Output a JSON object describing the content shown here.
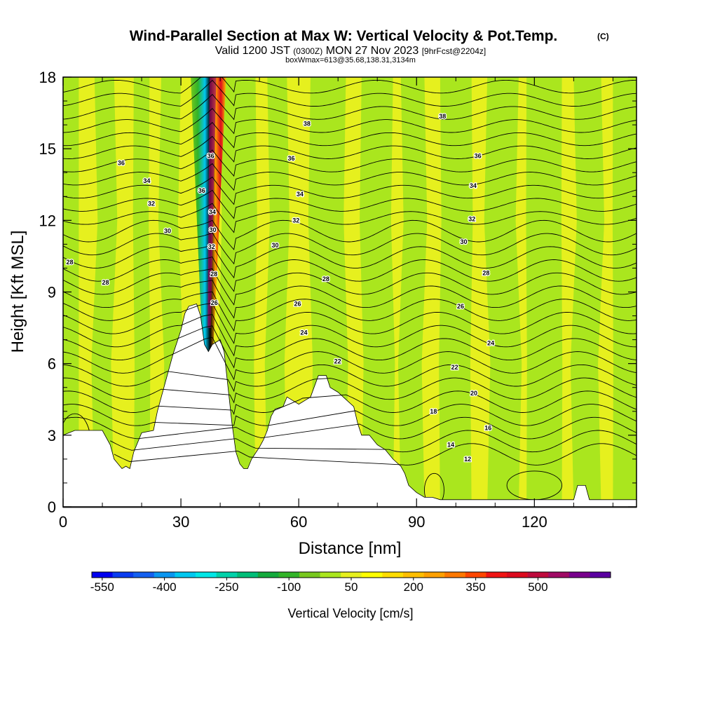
{
  "chart_data": {
    "type": "heatmap",
    "title": "Wind-Parallel Section at Max W: Vertical Velocity & Pot.Temp.",
    "title_mark": "(C)",
    "subtitle": {
      "prefix": "Valid 1200 JST",
      "utc": "(0300Z)",
      "date": "MON 27 Nov 2023",
      "forecast": "[9hrFcst@2204z]"
    },
    "box_wmax": "boxWmax=613@35.68,138.31,3134m",
    "xlabel": "Distance [nm]",
    "ylabel": "Height [Kft MSL]",
    "xlim": [
      0,
      146
    ],
    "ylim": [
      0,
      18
    ],
    "x_ticks": [
      "0",
      "30",
      "60",
      "90",
      "120"
    ],
    "y_ticks": [
      "0",
      "3",
      "6",
      "9",
      "12",
      "15",
      "18"
    ],
    "colorbar": {
      "label": "Vertical Velocity [cm/s]",
      "tick_labels": [
        "-550",
        "-400",
        "-250",
        "-100",
        "50",
        "200",
        "350",
        "500"
      ],
      "colors": [
        "#0000f0",
        "#0a3cf0",
        "#1460f0",
        "#0a96f0",
        "#00c8f0",
        "#00e6e6",
        "#00d2aa",
        "#00be78",
        "#14aa3c",
        "#32b428",
        "#78c81e",
        "#aae61e",
        "#e6f01e",
        "#ffff00",
        "#ffdc00",
        "#ffbe00",
        "#ffa000",
        "#ff7800",
        "#ff4600",
        "#f01414",
        "#dc0a1e",
        "#be0a3c",
        "#a00a64",
        "#78008c",
        "#5a00a0"
      ]
    },
    "theta_labels": [
      {
        "v": "38",
        "x": 62.1,
        "y": 16.05
      },
      {
        "v": "38",
        "x": 96.6,
        "y": 16.35
      },
      {
        "v": "36",
        "x": 14.8,
        "y": 14.4
      },
      {
        "v": "36",
        "x": 58.1,
        "y": 14.6
      },
      {
        "v": "36",
        "x": 105.6,
        "y": 14.7
      },
      {
        "v": "36",
        "x": 37.6,
        "y": 14.7
      },
      {
        "v": "36",
        "x": 35.3,
        "y": 13.25
      },
      {
        "v": "34",
        "x": 21.3,
        "y": 13.65
      },
      {
        "v": "34",
        "x": 60.3,
        "y": 13.1
      },
      {
        "v": "34",
        "x": 104.4,
        "y": 13.45
      },
      {
        "v": "34",
        "x": 38.0,
        "y": 12.35
      },
      {
        "v": "32",
        "x": 22.5,
        "y": 12.7
      },
      {
        "v": "32",
        "x": 59.3,
        "y": 12.0
      },
      {
        "v": "32",
        "x": 104.1,
        "y": 12.05
      },
      {
        "v": "32",
        "x": 37.8,
        "y": 10.9
      },
      {
        "v": "30",
        "x": 26.6,
        "y": 11.55
      },
      {
        "v": "30",
        "x": 54.0,
        "y": 10.95
      },
      {
        "v": "30",
        "x": 102.0,
        "y": 11.1
      },
      {
        "v": "30",
        "x": 38.1,
        "y": 11.6
      },
      {
        "v": "28",
        "x": 1.7,
        "y": 10.25
      },
      {
        "v": "28",
        "x": 10.8,
        "y": 9.4
      },
      {
        "v": "28",
        "x": 66.9,
        "y": 9.55
      },
      {
        "v": "28",
        "x": 107.7,
        "y": 9.8
      },
      {
        "v": "28",
        "x": 38.4,
        "y": 9.75
      },
      {
        "v": "26",
        "x": 59.7,
        "y": 8.5
      },
      {
        "v": "26",
        "x": 101.2,
        "y": 8.4
      },
      {
        "v": "26",
        "x": 38.5,
        "y": 8.55
      },
      {
        "v": "24",
        "x": 61.3,
        "y": 7.3
      },
      {
        "v": "24",
        "x": 108.9,
        "y": 6.85
      },
      {
        "v": "22",
        "x": 69.9,
        "y": 6.1
      },
      {
        "v": "22",
        "x": 99.7,
        "y": 5.85
      },
      {
        "v": "20",
        "x": 104.6,
        "y": 4.75
      },
      {
        "v": "18",
        "x": 94.3,
        "y": 4.0
      },
      {
        "v": "16",
        "x": 108.2,
        "y": 3.3
      },
      {
        "v": "14",
        "x": 98.7,
        "y": 2.6
      },
      {
        "v": "12",
        "x": 103.0,
        "y": 2.0
      }
    ]
  }
}
